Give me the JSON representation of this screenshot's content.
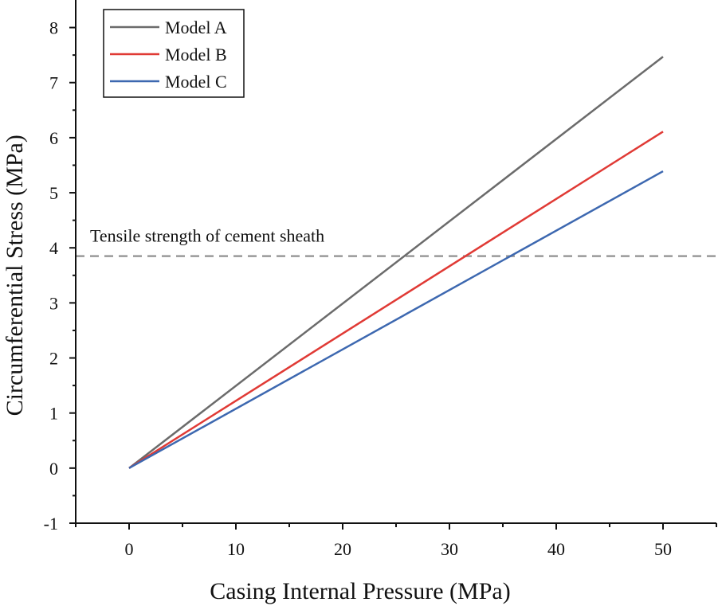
{
  "chart_data": {
    "type": "line",
    "xlabel": "Casing Internal Pressure (MPa)",
    "ylabel": "Circumferential Stress (MPa)",
    "xlim": [
      -5,
      55
    ],
    "ylim": [
      -1,
      8.5
    ],
    "x_ticks": [
      0,
      10,
      20,
      30,
      40,
      50
    ],
    "y_ticks": [
      -1,
      0,
      1,
      2,
      3,
      4,
      5,
      6,
      7,
      8
    ],
    "grid": false,
    "legend_position": "top-left",
    "series": [
      {
        "name": "Model A",
        "color": "#6b6b6b",
        "x": [
          0,
          50
        ],
        "y": [
          0,
          7.47
        ]
      },
      {
        "name": "Model B",
        "color": "#e03a35",
        "x": [
          0,
          50
        ],
        "y": [
          0,
          6.11
        ]
      },
      {
        "name": "Model C",
        "color": "#3d68b0",
        "x": [
          0,
          50
        ],
        "y": [
          0,
          5.39
        ]
      }
    ],
    "reference_line": {
      "label": "Tensile strength of cement sheath",
      "y": 3.85,
      "color": "#999999",
      "style": "dashed"
    }
  }
}
